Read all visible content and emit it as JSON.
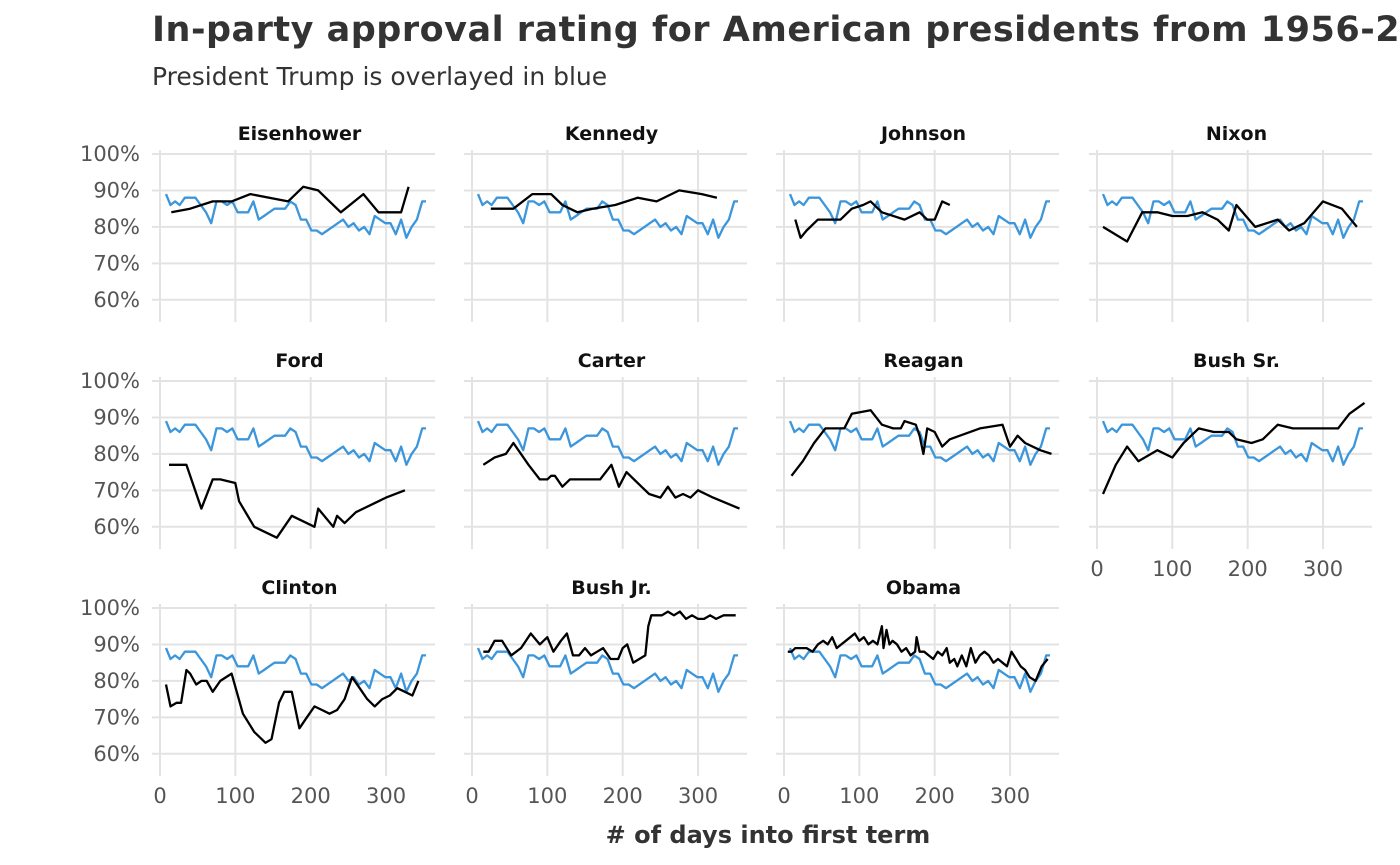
{
  "title": "In-party approval rating for American presidents from 1956-2",
  "subtitle": "President Trump is overlayed in blue",
  "chart_data": {
    "type": "line",
    "xlabel": "# of days into first term",
    "xlim": [
      0,
      365
    ],
    "ylim": [
      55,
      100
    ],
    "x_ticks": [
      0,
      100,
      200,
      300
    ],
    "x_tick_labels": [
      "0",
      "100",
      "200",
      "300"
    ],
    "y_ticks": [
      60,
      70,
      80,
      90,
      100
    ],
    "y_tick_labels": [
      "60%",
      "70%",
      "80%",
      "90%",
      "100%"
    ],
    "colors": {
      "president": "#000000",
      "overlay": "#3b96dc",
      "grid": "#e3e3e3"
    },
    "overlay": {
      "x": [
        8,
        14,
        20,
        26,
        33,
        40,
        47,
        54,
        61,
        68,
        75,
        82,
        89,
        96,
        103,
        110,
        117,
        124,
        131,
        138,
        145,
        152,
        159,
        166,
        173,
        180,
        187,
        194,
        201,
        208,
        215,
        222,
        229,
        236,
        243,
        250,
        257,
        264,
        271,
        278,
        285,
        292,
        299,
        306,
        313,
        320,
        327,
        334,
        341,
        348,
        353
      ],
      "y": [
        89,
        86,
        87,
        86,
        88,
        88,
        88,
        86,
        84,
        81,
        87,
        87,
        86,
        87,
        84,
        84,
        84,
        87,
        82,
        83,
        84,
        85,
        85,
        85,
        87,
        86,
        82,
        82,
        79,
        79,
        78,
        79,
        80,
        81,
        82,
        80,
        81,
        79,
        80,
        78,
        83,
        82,
        81,
        81,
        78,
        82,
        77,
        80,
        82,
        87,
        87
      ]
    },
    "panels": [
      {
        "name": "Eisenhower",
        "x": [
          15,
          40,
          70,
          95,
          120,
          170,
          190,
          210,
          240,
          270,
          290,
          320,
          330
        ],
        "y": [
          84,
          85,
          87,
          87,
          89,
          87,
          91,
          90,
          84,
          89,
          84,
          84,
          91
        ]
      },
      {
        "name": "Kennedy",
        "x": [
          25,
          55,
          80,
          105,
          120,
          140,
          160,
          190,
          220,
          245,
          275,
          305,
          325
        ],
        "y": [
          85,
          85,
          89,
          89,
          86,
          84,
          85,
          86,
          88,
          87,
          90,
          89,
          88
        ]
      },
      {
        "name": "Johnson",
        "x": [
          15,
          22,
          30,
          45,
          60,
          75,
          90,
          105,
          115,
          130,
          160,
          180,
          190,
          200,
          210,
          220
        ],
        "y": [
          82,
          77,
          79,
          82,
          82,
          82,
          85,
          86,
          87,
          84,
          82,
          84,
          82,
          82,
          87,
          86
        ]
      },
      {
        "name": "Nixon",
        "x": [
          8,
          40,
          60,
          80,
          100,
          120,
          140,
          160,
          175,
          185,
          210,
          240,
          255,
          275,
          300,
          325,
          345
        ],
        "y": [
          80,
          76,
          84,
          84,
          83,
          83,
          84,
          82,
          79,
          86,
          80,
          82,
          79,
          81,
          87,
          85,
          80
        ]
      },
      {
        "name": "Ford",
        "x": [
          12,
          35,
          55,
          70,
          80,
          100,
          105,
          125,
          155,
          175,
          205,
          210,
          230,
          235,
          245,
          260,
          300,
          325
        ],
        "y": [
          77,
          77,
          65,
          73,
          73,
          72,
          67,
          60,
          57,
          63,
          60,
          65,
          60,
          63,
          61,
          64,
          68,
          70
        ]
      },
      {
        "name": "Carter",
        "x": [
          15,
          30,
          45,
          55,
          75,
          90,
          100,
          105,
          110,
          120,
          130,
          155,
          170,
          185,
          195,
          205,
          225,
          235,
          250,
          260,
          270,
          280,
          290,
          300,
          320,
          355
        ],
        "y": [
          77,
          79,
          80,
          83,
          77,
          73,
          73,
          74,
          74,
          71,
          73,
          73,
          73,
          77,
          71,
          75,
          71,
          69,
          68,
          71,
          68,
          69,
          68,
          70,
          68,
          65
        ]
      },
      {
        "name": "Reagan",
        "x": [
          10,
          25,
          40,
          55,
          70,
          80,
          90,
          115,
          130,
          145,
          155,
          160,
          175,
          180,
          185,
          190,
          200,
          210,
          220,
          260,
          290,
          300,
          310,
          320,
          340,
          355
        ],
        "y": [
          74,
          78,
          83,
          87,
          87,
          87,
          91,
          92,
          88,
          87,
          87,
          89,
          88,
          85,
          80,
          87,
          86,
          82,
          84,
          87,
          88,
          82,
          85,
          83,
          81,
          80
        ]
      },
      {
        "name": "Bush Sr.",
        "x": [
          8,
          25,
          40,
          55,
          80,
          100,
          115,
          135,
          155,
          175,
          185,
          205,
          220,
          240,
          260,
          320,
          335,
          355
        ],
        "y": [
          69,
          77,
          82,
          78,
          81,
          79,
          83,
          87,
          86,
          86,
          84,
          83,
          84,
          88,
          87,
          87,
          91,
          94
        ]
      },
      {
        "name": "Clinton",
        "x": [
          8,
          14,
          22,
          28,
          35,
          40,
          48,
          55,
          62,
          70,
          80,
          95,
          110,
          125,
          140,
          148,
          158,
          165,
          175,
          185,
          195,
          205,
          215,
          225,
          235,
          245,
          255,
          265,
          275,
          285,
          295,
          305,
          315,
          325,
          335,
          343
        ],
        "y": [
          79,
          73,
          74,
          74,
          83,
          82,
          79,
          80,
          80,
          77,
          80,
          82,
          71,
          66,
          63,
          64,
          74,
          77,
          77,
          67,
          70,
          73,
          72,
          71,
          72,
          75,
          81,
          78,
          75,
          73,
          75,
          76,
          78,
          77,
          76,
          80
        ]
      },
      {
        "name": "Bush Jr.",
        "x": [
          15,
          22,
          30,
          40,
          52,
          65,
          78,
          90,
          100,
          108,
          118,
          126,
          134,
          142,
          150,
          158,
          166,
          174,
          184,
          194,
          200,
          206,
          214,
          222,
          230,
          234,
          238,
          244,
          252,
          260,
          268,
          276,
          284,
          292,
          300,
          308,
          316,
          324,
          334,
          350
        ],
        "y": [
          88,
          88,
          91,
          91,
          87,
          89,
          93,
          90,
          92,
          88,
          91,
          93,
          87,
          87,
          89,
          87,
          88,
          89,
          86,
          86,
          89,
          90,
          85,
          86,
          87,
          95,
          98,
          98,
          98,
          99,
          98,
          99,
          97,
          98,
          97,
          97,
          98,
          97,
          98,
          98
        ]
      },
      {
        "name": "Obama",
        "x": [
          5,
          10,
          15,
          22,
          30,
          38,
          45,
          52,
          58,
          64,
          70,
          76,
          82,
          88,
          94,
          100,
          106,
          112,
          118,
          124,
          130,
          132,
          136,
          140,
          144,
          150,
          156,
          162,
          168,
          174,
          176,
          180,
          186,
          192,
          198,
          204,
          210,
          216,
          220,
          226,
          230,
          236,
          242,
          248,
          254,
          260,
          266,
          272,
          278,
          284,
          290,
          296,
          302,
          308,
          314,
          320,
          326,
          334,
          342,
          350
        ],
        "y": [
          88,
          88,
          89,
          89,
          89,
          88,
          90,
          91,
          90,
          92,
          89,
          90,
          91,
          92,
          93,
          91,
          92,
          90,
          91,
          90,
          95,
          89,
          94,
          90,
          91,
          90,
          88,
          89,
          87,
          88,
          92,
          88,
          88,
          87,
          86,
          88,
          87,
          89,
          85,
          86,
          84,
          87,
          84,
          89,
          85,
          87,
          88,
          87,
          85,
          86,
          85,
          84,
          88,
          86,
          84,
          83,
          81,
          80,
          84,
          86
        ]
      }
    ]
  }
}
